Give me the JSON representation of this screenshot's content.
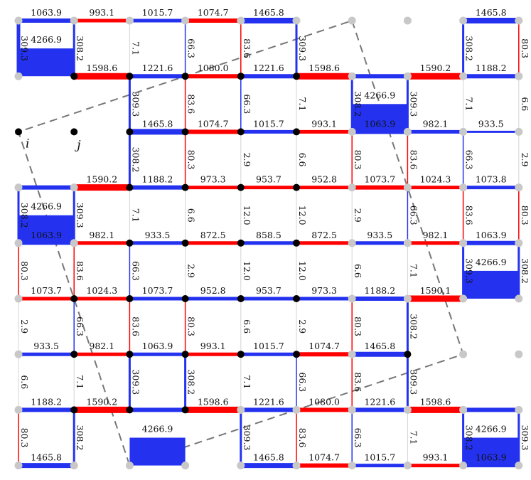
{
  "colors": {
    "positive": "#2432f0",
    "negative": "#ff0000",
    "dot_active": "#000000",
    "dot_inactive": "#c8c8c8",
    "thin": "#d4d4d4",
    "dash": "#777777"
  },
  "point_labels": [
    "i",
    "j"
  ],
  "grid": {
    "cols": 10,
    "rows": 9
  },
  "horizontal_edges": [
    {
      "r": 0,
      "c": 0,
      "v": "1063.9",
      "col": "b",
      "w": 3.5
    },
    {
      "r": 0,
      "c": 1,
      "v": "993.1",
      "col": "r",
      "w": 5
    },
    {
      "r": 0,
      "c": 2,
      "v": "1015.7",
      "col": "b",
      "w": 5
    },
    {
      "r": 0,
      "c": 3,
      "v": "1074.7",
      "col": "r",
      "w": 6
    },
    {
      "r": 0,
      "c": 4,
      "v": "1465.8",
      "col": "b",
      "w": 8
    },
    {
      "r": 0,
      "c": 8,
      "v": "1465.8",
      "col": "b",
      "w": 8
    },
    {
      "r": 1,
      "c": 1,
      "v": "1598.6",
      "col": "r",
      "w": 9
    },
    {
      "r": 1,
      "c": 2,
      "v": "1221.6",
      "col": "b",
      "w": 6
    },
    {
      "r": 1,
      "c": 3,
      "v": "1080.0",
      "col": "r",
      "w": 6
    },
    {
      "r": 1,
      "c": 4,
      "v": "1221.6",
      "col": "b",
      "w": 6
    },
    {
      "r": 1,
      "c": 5,
      "v": "1598.6",
      "col": "r",
      "w": 9
    },
    {
      "r": 1,
      "c": 7,
      "v": "1590.2",
      "col": "r",
      "w": 9
    },
    {
      "r": 1,
      "c": 8,
      "v": "1188.2",
      "col": "b",
      "w": 6
    },
    {
      "r": 2,
      "c": 2,
      "v": "1465.8",
      "col": "b",
      "w": 8
    },
    {
      "r": 2,
      "c": 3,
      "v": "1074.7",
      "col": "r",
      "w": 6
    },
    {
      "r": 2,
      "c": 4,
      "v": "1015.7",
      "col": "b",
      "w": 5
    },
    {
      "r": 2,
      "c": 5,
      "v": "993.1",
      "col": "r",
      "w": 5
    },
    {
      "r": 2,
      "c": 6,
      "v": "1063.9",
      "col": "b",
      "w": 6
    },
    {
      "r": 2,
      "c": 7,
      "v": "982.1",
      "col": "b",
      "w": 5
    },
    {
      "r": 2,
      "c": 8,
      "v": "933.5",
      "col": "b",
      "w": 3
    },
    {
      "r": 3,
      "c": 1,
      "v": "1590.2",
      "col": "r",
      "w": 9
    },
    {
      "r": 3,
      "c": 2,
      "v": "1188.2",
      "col": "b",
      "w": 6
    },
    {
      "r": 3,
      "c": 3,
      "v": "973.3",
      "col": "r",
      "w": 5
    },
    {
      "r": 3,
      "c": 4,
      "v": "953.7",
      "col": "r",
      "w": 5
    },
    {
      "r": 3,
      "c": 5,
      "v": "952.8",
      "col": "r",
      "w": 5
    },
    {
      "r": 3,
      "c": 6,
      "v": "1073.7",
      "col": "r",
      "w": 6
    },
    {
      "r": 3,
      "c": 7,
      "v": "1024.3",
      "col": "r",
      "w": 5
    },
    {
      "r": 3,
      "c": 8,
      "v": "1073.8",
      "col": "b",
      "w": 5
    },
    {
      "r": 4,
      "c": 0,
      "v": "1063.9",
      "col": "b",
      "w": 5
    },
    {
      "r": 4,
      "c": 1,
      "v": "982.1",
      "col": "r",
      "w": 5
    },
    {
      "r": 4,
      "c": 2,
      "v": "933.5",
      "col": "b",
      "w": 5
    },
    {
      "r": 4,
      "c": 3,
      "v": "872.5",
      "col": "r",
      "w": 5
    },
    {
      "r": 4,
      "c": 4,
      "v": "858.5",
      "col": "b",
      "w": 5
    },
    {
      "r": 4,
      "c": 5,
      "v": "872.5",
      "col": "r",
      "w": 5
    },
    {
      "r": 4,
      "c": 6,
      "v": "933.5",
      "col": "b",
      "w": 5
    },
    {
      "r": 4,
      "c": 7,
      "v": "982.1",
      "col": "r",
      "w": 5
    },
    {
      "r": 4,
      "c": 8,
      "v": "1063.9",
      "col": "b",
      "w": 5
    },
    {
      "r": 5,
      "c": 0,
      "v": "1073.7",
      "col": "r",
      "w": 5
    },
    {
      "r": 5,
      "c": 1,
      "v": "1024.3",
      "col": "r",
      "w": 5
    },
    {
      "r": 5,
      "c": 2,
      "v": "1073.7",
      "col": "b",
      "w": 5
    },
    {
      "r": 5,
      "c": 3,
      "v": "952.8",
      "col": "b",
      "w": 5
    },
    {
      "r": 5,
      "c": 4,
      "v": "953.7",
      "col": "b",
      "w": 5
    },
    {
      "r": 5,
      "c": 5,
      "v": "973.3",
      "col": "b",
      "w": 5
    },
    {
      "r": 5,
      "c": 6,
      "v": "1188.2",
      "col": "b",
      "w": 6
    },
    {
      "r": 5,
      "c": 7,
      "v": "1590.1",
      "col": "r",
      "w": 9
    },
    {
      "r": 6,
      "c": 0,
      "v": "933.5",
      "col": "b",
      "w": 5
    },
    {
      "r": 6,
      "c": 1,
      "v": "982.1",
      "col": "r",
      "w": 5
    },
    {
      "r": 6,
      "c": 2,
      "v": "1063.9",
      "col": "b",
      "w": 5
    },
    {
      "r": 6,
      "c": 3,
      "v": "993.1",
      "col": "r",
      "w": 5
    },
    {
      "r": 6,
      "c": 4,
      "v": "1015.7",
      "col": "b",
      "w": 5
    },
    {
      "r": 6,
      "c": 5,
      "v": "1074.7",
      "col": "r",
      "w": 6
    },
    {
      "r": 6,
      "c": 6,
      "v": "1465.8",
      "col": "b",
      "w": 7
    },
    {
      "r": 7,
      "c": 0,
      "v": "1188.2",
      "col": "b",
      "w": 6
    },
    {
      "r": 7,
      "c": 1,
      "v": "1590.2",
      "col": "r",
      "w": 9
    },
    {
      "r": 7,
      "c": 3,
      "v": "1598.6",
      "col": "r",
      "w": 9
    },
    {
      "r": 7,
      "c": 4,
      "v": "1221.6",
      "col": "b",
      "w": 6
    },
    {
      "r": 7,
      "c": 5,
      "v": "1080.0",
      "col": "r",
      "w": 6
    },
    {
      "r": 7,
      "c": 6,
      "v": "1221.6",
      "col": "b",
      "w": 6
    },
    {
      "r": 7,
      "c": 7,
      "v": "1598.6",
      "col": "r",
      "w": 9
    },
    {
      "r": 8,
      "c": 0,
      "v": "1465.8",
      "col": "b",
      "w": 7
    },
    {
      "r": 8,
      "c": 4,
      "v": "1465.8",
      "col": "b",
      "w": 7
    },
    {
      "r": 8,
      "c": 5,
      "v": "1074.7",
      "col": "r",
      "w": 6
    },
    {
      "r": 8,
      "c": 6,
      "v": "1015.7",
      "col": "b",
      "w": 5
    },
    {
      "r": 8,
      "c": 7,
      "v": "993.1",
      "col": "r",
      "w": 5
    },
    {
      "r": 8,
      "c": 8,
      "v": "1063.9",
      "col": "b",
      "w": 5
    }
  ],
  "vertical_edges": [
    {
      "r": 0,
      "c": 0,
      "v": "309.3",
      "col": "b",
      "w": 5
    },
    {
      "r": 0,
      "c": 1,
      "v": "308.2",
      "col": "b",
      "w": 3
    },
    {
      "r": 0,
      "c": 2,
      "v": "7.1",
      "col": "t",
      "w": 1
    },
    {
      "r": 0,
      "c": 3,
      "v": "66.3",
      "col": "b",
      "w": 1.5
    },
    {
      "r": 0,
      "c": 4,
      "v": "83.6",
      "col": "r",
      "w": 1.5
    },
    {
      "r": 0,
      "c": 5,
      "v": "309.3",
      "col": "b",
      "w": 3
    },
    {
      "r": 0,
      "c": 8,
      "v": "308.2",
      "col": "b",
      "w": 3
    },
    {
      "r": 0,
      "c": 9,
      "v": "80.3",
      "col": "r",
      "w": 1.5
    },
    {
      "r": 1,
      "c": 2,
      "v": "309.3",
      "col": "b",
      "w": 3
    },
    {
      "r": 1,
      "c": 3,
      "v": "83.6",
      "col": "r",
      "w": 1.5
    },
    {
      "r": 1,
      "c": 4,
      "v": "66.3",
      "col": "b",
      "w": 1.5
    },
    {
      "r": 1,
      "c": 5,
      "v": "7.1",
      "col": "t",
      "w": 1
    },
    {
      "r": 1,
      "c": 6,
      "v": "308.2",
      "col": "b",
      "w": 3
    },
    {
      "r": 1,
      "c": 7,
      "v": "309.3",
      "col": "b",
      "w": 3
    },
    {
      "r": 1,
      "c": 8,
      "v": "7.1",
      "col": "t",
      "w": 1
    },
    {
      "r": 1,
      "c": 9,
      "v": "6.6",
      "col": "t",
      "w": 1
    },
    {
      "r": 2,
      "c": 2,
      "v": "308.2",
      "col": "b",
      "w": 3
    },
    {
      "r": 2,
      "c": 3,
      "v": "80.3",
      "col": "r",
      "w": 1.5
    },
    {
      "r": 2,
      "c": 4,
      "v": "2.9",
      "col": "t",
      "w": 1
    },
    {
      "r": 2,
      "c": 5,
      "v": "6.6",
      "col": "t",
      "w": 1
    },
    {
      "r": 2,
      "c": 6,
      "v": "80.3",
      "col": "r",
      "w": 1.5
    },
    {
      "r": 2,
      "c": 7,
      "v": "83.6",
      "col": "r",
      "w": 1.5
    },
    {
      "r": 2,
      "c": 8,
      "v": "66.3",
      "col": "b",
      "w": 1.5
    },
    {
      "r": 2,
      "c": 9,
      "v": "2.9",
      "col": "t",
      "w": 1
    },
    {
      "r": 3,
      "c": 0,
      "v": "308.2",
      "col": "b",
      "w": 3
    },
    {
      "r": 3,
      "c": 1,
      "v": "309.3",
      "col": "b",
      "w": 3
    },
    {
      "r": 3,
      "c": 2,
      "v": "7.1",
      "col": "t",
      "w": 1
    },
    {
      "r": 3,
      "c": 3,
      "v": "6.6",
      "col": "t",
      "w": 1
    },
    {
      "r": 3,
      "c": 4,
      "v": "12.0",
      "col": "t",
      "w": 1
    },
    {
      "r": 3,
      "c": 5,
      "v": "12.0",
      "col": "t",
      "w": 1
    },
    {
      "r": 3,
      "c": 6,
      "v": "2.9",
      "col": "t",
      "w": 1
    },
    {
      "r": 3,
      "c": 7,
      "v": "66.3",
      "col": "b",
      "w": 1.5
    },
    {
      "r": 3,
      "c": 8,
      "v": "83.6",
      "col": "r",
      "w": 1.5
    },
    {
      "r": 3,
      "c": 9,
      "v": "80.3",
      "col": "r",
      "w": 1.5
    },
    {
      "r": 4,
      "c": 0,
      "v": "80.3",
      "col": "r",
      "w": 1.5
    },
    {
      "r": 4,
      "c": 1,
      "v": "83.6",
      "col": "r",
      "w": 1.5
    },
    {
      "r": 4,
      "c": 2,
      "v": "66.3",
      "col": "b",
      "w": 1.5
    },
    {
      "r": 4,
      "c": 3,
      "v": "2.9",
      "col": "t",
      "w": 1
    },
    {
      "r": 4,
      "c": 4,
      "v": "12.0",
      "col": "t",
      "w": 1
    },
    {
      "r": 4,
      "c": 5,
      "v": "12.0",
      "col": "t",
      "w": 1
    },
    {
      "r": 4,
      "c": 6,
      "v": "6.6",
      "col": "t",
      "w": 1
    },
    {
      "r": 4,
      "c": 7,
      "v": "7.1",
      "col": "t",
      "w": 1
    },
    {
      "r": 4,
      "c": 8,
      "v": "309.3",
      "col": "b",
      "w": 3
    },
    {
      "r": 4,
      "c": 9,
      "v": "308.2",
      "col": "b",
      "w": 3
    },
    {
      "r": 5,
      "c": 0,
      "v": "2.9",
      "col": "t",
      "w": 1
    },
    {
      "r": 5,
      "c": 1,
      "v": "66.3",
      "col": "b",
      "w": 1.5
    },
    {
      "r": 5,
      "c": 2,
      "v": "83.6",
      "col": "r",
      "w": 1.5
    },
    {
      "r": 5,
      "c": 3,
      "v": "80.3",
      "col": "r",
      "w": 1.5
    },
    {
      "r": 5,
      "c": 4,
      "v": "6.6",
      "col": "t",
      "w": 1
    },
    {
      "r": 5,
      "c": 5,
      "v": "2.9",
      "col": "t",
      "w": 1
    },
    {
      "r": 5,
      "c": 6,
      "v": "80.3",
      "col": "r",
      "w": 1.5
    },
    {
      "r": 5,
      "c": 7,
      "v": "308.2",
      "col": "b",
      "w": 3
    },
    {
      "r": 6,
      "c": 0,
      "v": "6.6",
      "col": "t",
      "w": 1
    },
    {
      "r": 6,
      "c": 1,
      "v": "7.1",
      "col": "t",
      "w": 1
    },
    {
      "r": 6,
      "c": 2,
      "v": "309.3",
      "col": "b",
      "w": 3
    },
    {
      "r": 6,
      "c": 3,
      "v": "308.2",
      "col": "b",
      "w": 3
    },
    {
      "r": 6,
      "c": 4,
      "v": "7.1",
      "col": "t",
      "w": 1
    },
    {
      "r": 6,
      "c": 5,
      "v": "66.3",
      "col": "b",
      "w": 1.5
    },
    {
      "r": 6,
      "c": 6,
      "v": "83.6",
      "col": "r",
      "w": 1.5
    },
    {
      "r": 6,
      "c": 7,
      "v": "309.3",
      "col": "b",
      "w": 3
    },
    {
      "r": 7,
      "c": 0,
      "v": "80.3",
      "col": "r",
      "w": 1.5
    },
    {
      "r": 7,
      "c": 1,
      "v": "308.2",
      "col": "b",
      "w": 3
    },
    {
      "r": 7,
      "c": 4,
      "v": "309.3",
      "col": "b",
      "w": 3
    },
    {
      "r": 7,
      "c": 5,
      "v": "83.6",
      "col": "r",
      "w": 1.5
    },
    {
      "r": 7,
      "c": 6,
      "v": "66.3",
      "col": "b",
      "w": 1.5
    },
    {
      "r": 7,
      "c": 7,
      "v": "7.1",
      "col": "t",
      "w": 1
    },
    {
      "r": 7,
      "c": 8,
      "v": "308.2",
      "col": "b",
      "w": 3
    },
    {
      "r": 7,
      "c": 9,
      "v": "309.3",
      "col": "b",
      "w": 3
    }
  ],
  "squares": [
    {
      "r": 0,
      "c": 0,
      "v": "4266.9"
    },
    {
      "r": 1,
      "c": 6,
      "v": "4266.9"
    },
    {
      "r": 3,
      "c": 0,
      "v": "4266.9"
    },
    {
      "r": 4,
      "c": 8,
      "v": "4266.9"
    },
    {
      "r": 7,
      "c": 2,
      "v": "4266.9"
    },
    {
      "r": 7,
      "c": 8,
      "v": "4266.9"
    }
  ],
  "black_nodes": [
    [
      1,
      1
    ],
    [
      1,
      2
    ],
    [
      1,
      3
    ],
    [
      1,
      4
    ],
    [
      1,
      5
    ],
    [
      2,
      0
    ],
    [
      2,
      1
    ],
    [
      2,
      2
    ],
    [
      2,
      3
    ],
    [
      2,
      4
    ],
    [
      2,
      5
    ],
    [
      3,
      2
    ],
    [
      3,
      3
    ],
    [
      3,
      4
    ],
    [
      3,
      5
    ],
    [
      4,
      2
    ],
    [
      4,
      3
    ],
    [
      4,
      4
    ],
    [
      4,
      5
    ],
    [
      5,
      1
    ],
    [
      5,
      2
    ],
    [
      5,
      3
    ],
    [
      5,
      4
    ],
    [
      5,
      5
    ],
    [
      6,
      1
    ],
    [
      6,
      2
    ],
    [
      6,
      3
    ],
    [
      6,
      4
    ],
    [
      6,
      5
    ],
    [
      6,
      7
    ],
    [
      7,
      1
    ],
    [
      7,
      2
    ],
    [
      7,
      3
    ]
  ]
}
